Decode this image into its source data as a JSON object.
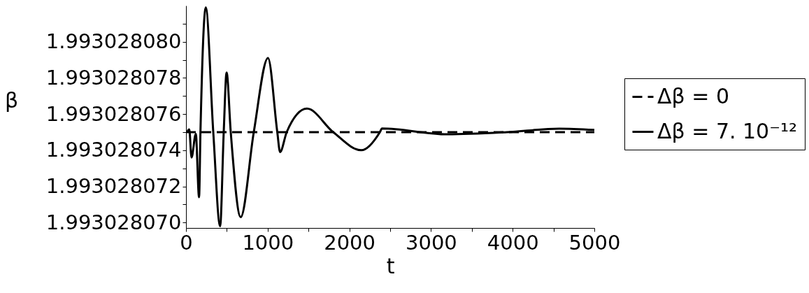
{
  "chart_data": {
    "type": "line",
    "xlabel": "t",
    "ylabel": "β",
    "xlim": [
      0,
      5000
    ],
    "xticks": [
      0,
      {
        "value": 500,
        "label": null
      },
      1000,
      {
        "value": 1500,
        "label": null
      },
      2000,
      {
        "value": 2500,
        "label": null
      },
      3000,
      {
        "value": 3500,
        "label": null
      },
      4000,
      {
        "value": 4500,
        "label": null
      },
      5000
    ],
    "ylim": [
      1.9930280697,
      1.993028082
    ],
    "yticks": [
      {
        "value": 1.99302807,
        "label": "1.993028070"
      },
      {
        "value": 1.993028071,
        "label": null
      },
      {
        "value": 1.993028072,
        "label": "1.993028072"
      },
      {
        "value": 1.993028073,
        "label": null
      },
      {
        "value": 1.993028074,
        "label": "1.993028074"
      },
      {
        "value": 1.993028075,
        "label": null
      },
      {
        "value": 1.993028076,
        "label": "1.993028076"
      },
      {
        "value": 1.993028077,
        "label": null
      },
      {
        "value": 1.993028078,
        "label": "1.993028078"
      },
      {
        "value": 1.993028079,
        "label": null
      },
      {
        "value": 1.99302808,
        "label": "1.993028080"
      },
      {
        "value": 1.993028081,
        "label": null
      }
    ],
    "legend": "right",
    "grid": false,
    "series": [
      {
        "name": "Δβ = 0",
        "color": "#000000",
        "line_style": "dashed",
        "x": [
          0,
          5000
        ],
        "values": [
          1.993028075,
          1.993028075
        ]
      },
      {
        "name": "Δβ = 7. 10⁻¹²",
        "color": "#000000",
        "line_style": "solid",
        "x": [
          17,
          40,
          68,
          120,
          160,
          177,
          242,
          334,
          418,
          462,
          497,
          548,
          670,
          830,
          1004,
          1118,
          1152,
          1233,
          1481,
          1803,
          2146,
          2374,
          2400,
          3200,
          3930,
          4570,
          5000
        ],
        "values": [
          1.99302807504,
          1.99302807515,
          1.9930280736,
          1.9930280749,
          1.9930280714,
          1.993028075,
          1.9930280819,
          1.993028075,
          1.9930280698,
          1.993028075,
          1.9930280783,
          1.993028075,
          1.9930280703,
          1.993028075,
          1.9930280791,
          1.993028075,
          1.9930280739,
          1.993028075,
          1.9930280763,
          1.993028075,
          1.993028074,
          1.993028075,
          1.9930280752,
          1.99302807488,
          1.993028075,
          1.99302807519,
          1.99302807512
        ]
      }
    ]
  }
}
